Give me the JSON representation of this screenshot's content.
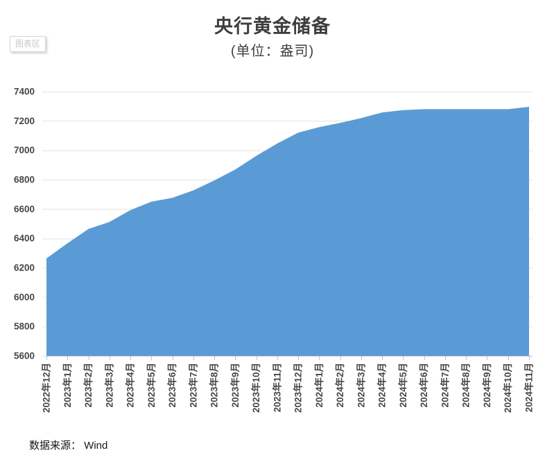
{
  "header": {
    "title": "央行黄金储备",
    "subtitle": "(单位：盎司)"
  },
  "tooltip_label": "图表区",
  "footer": {
    "source_label": "数据来源： Wind"
  },
  "colors": {
    "area_fill": "#5b9bd5",
    "gridline": "#e4e4e4",
    "axis_line": "#bfbfbf",
    "axis_tick": "#bfbfbf",
    "axis_label": "#474747",
    "title_text": "#3d3d3d"
  },
  "chart_data": {
    "type": "area",
    "title": "央行黄金储备",
    "subtitle": "(单位：盎司)",
    "xlabel": "",
    "ylabel": "",
    "categories": [
      "2022年12月",
      "2023年1月",
      "2023年2月",
      "2023年3月",
      "2023年4月",
      "2023年5月",
      "2023年6月",
      "2023年7月",
      "2023年8月",
      "2023年9月",
      "2023年10月",
      "2023年11月",
      "2023年12月",
      "2024年1月",
      "2024年2月",
      "2024年3月",
      "2024年4月",
      "2024年5月",
      "2024年6月",
      "2024年7月",
      "2024年8月",
      "2024年9月",
      "2024年10月",
      "2024年11月"
    ],
    "series": [
      {
        "name": "央行黄金储备",
        "values": [
          6264,
          6367,
          6464,
          6512,
          6592,
          6650,
          6676,
          6727,
          6795,
          6869,
          6962,
          7046,
          7120,
          7158,
          7187,
          7219,
          7258,
          7274,
          7280,
          7280,
          7280,
          7280,
          7280,
          7296
        ]
      }
    ],
    "ylim": [
      5600,
      7400
    ],
    "ytick_step": 200,
    "yticks": [
      5600,
      5800,
      6000,
      6200,
      6400,
      6600,
      6800,
      7000,
      7200,
      7400
    ],
    "grid": "horizontal",
    "legend": "none",
    "x_label_rotation": -90
  }
}
